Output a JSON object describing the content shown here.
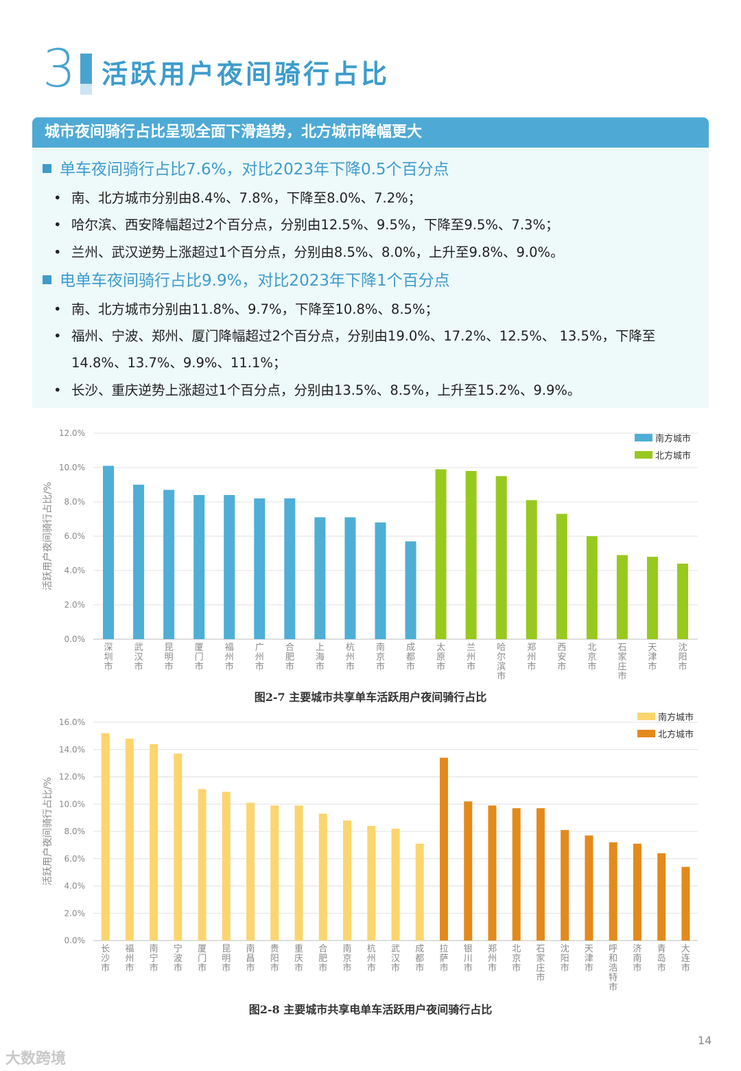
{
  "section": {
    "number": "3",
    "title": "活跃用户夜间骑行占比"
  },
  "banner": "城市夜间骑行占比呈现全面下滑趋势，北方城市降幅更大",
  "bike": {
    "heading": "单车夜间骑行占比7.6%，对比2023年下降0.5个百分点",
    "bullets": [
      "南、北方城市分别由8.4%、7.8%，下降至8.0%、7.2%；",
      "哈尔滨、西安降幅超过2个百分点，分别由12.5%、9.5%，下降至9.5%、7.3%；",
      "兰州、武汉逆势上涨超过1个百分点，分别由8.5%、8.0%，上升至9.8%、9.0%。"
    ]
  },
  "ebike": {
    "heading": "电单车夜间骑行占比9.9%，对比2023年下降1个百分点",
    "bullets": [
      "南、北方城市分别由11.8%、9.7%，下降至10.8%、8.5%；",
      "福州、宁波、郑州、厦门降幅超过2个百分点，分别由19.0%、17.2%、12.5%、 13.5%，下降至",
      "14.8%、13.7%、9.9%、11.1%；",
      "长沙、重庆逆势上涨超过1个百分点，分别由13.5%、8.5%，上升至15.2%、9.9%。"
    ]
  },
  "chart_data": [
    {
      "type": "bar",
      "title": "图2-7 主要城市共享单车活跃用户夜间骑行占比",
      "ylabel": "活跃用户夜间骑行占比/%",
      "ylim": [
        0,
        12
      ],
      "yticks": [
        "0.0%",
        "2.0%",
        "4.0%",
        "6.0%",
        "8.0%",
        "10.0%",
        "12.0%"
      ],
      "legend_position": "top-right",
      "series": [
        {
          "name": "南方城市",
          "color": "#4eaed6",
          "categories": [
            "深圳市",
            "武汉市",
            "昆明市",
            "厦门市",
            "福州市",
            "广州市",
            "合肥市",
            "上海市",
            "杭州市",
            "南京市",
            "成都市"
          ],
          "values": [
            10.1,
            9.0,
            8.7,
            8.4,
            8.4,
            8.2,
            8.2,
            7.1,
            7.1,
            6.8,
            5.7
          ]
        },
        {
          "name": "北方城市",
          "color": "#98c91f",
          "categories": [
            "太原市",
            "兰州市",
            "哈尔滨市",
            "郑州市",
            "西安市",
            "北京市",
            "石家庄市",
            "天津市",
            "沈阳市"
          ],
          "values": [
            9.9,
            9.8,
            9.5,
            8.1,
            7.3,
            6.0,
            4.9,
            4.8,
            4.4
          ]
        }
      ]
    },
    {
      "type": "bar",
      "title": "图2-8 主要城市共享电单车活跃用户夜间骑行占比",
      "ylabel": "活跃用户夜间骑行占比/%",
      "ylim": [
        0,
        16
      ],
      "yticks": [
        "0.0%",
        "2.0%",
        "4.0%",
        "6.0%",
        "8.0%",
        "10.0%",
        "12.0%",
        "14.0%",
        "16.0%"
      ],
      "legend_position": "top-right",
      "series": [
        {
          "name": "南方城市",
          "color": "#fbd56e",
          "categories": [
            "长沙市",
            "福州市",
            "南宁市",
            "宁波市",
            "厦门市",
            "昆明市",
            "南昌市",
            "贵阳市",
            "重庆市",
            "合肥市",
            "南京市",
            "杭州市",
            "武汉市",
            "成都市"
          ],
          "values": [
            15.2,
            14.8,
            14.4,
            13.7,
            11.1,
            10.9,
            10.1,
            9.9,
            9.9,
            9.3,
            8.8,
            8.4,
            8.2,
            7.1
          ]
        },
        {
          "name": "北方城市",
          "color": "#e38a1c",
          "categories": [
            "拉萨市",
            "银川市",
            "郑州市",
            "北京市",
            "石家庄市",
            "沈阳市",
            "天津市",
            "呼和浩特市",
            "济南市",
            "青岛市",
            "大连市"
          ],
          "values": [
            13.4,
            10.2,
            9.9,
            9.7,
            9.7,
            8.1,
            7.7,
            7.2,
            7.1,
            6.4,
            5.4
          ]
        }
      ]
    }
  ],
  "page_number": "14",
  "watermark": "大数跨境"
}
